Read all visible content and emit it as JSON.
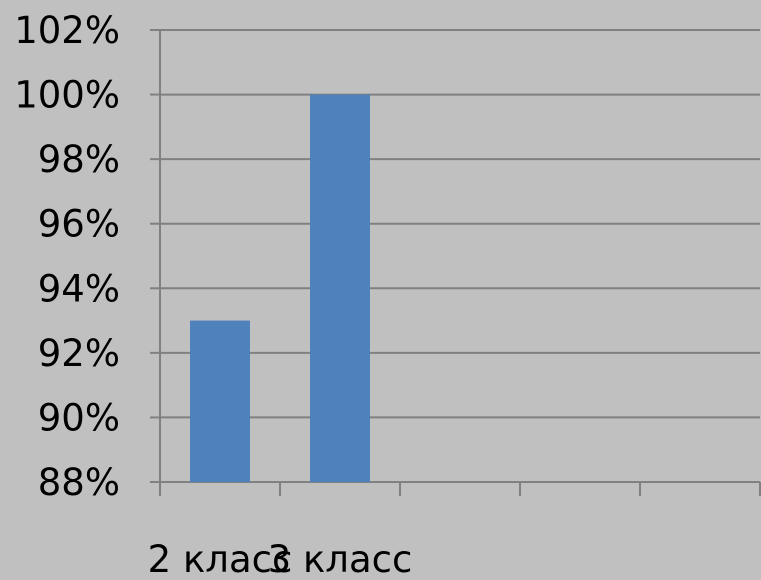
{
  "chart_data": {
    "type": "bar",
    "categories": [
      "2 класс",
      "3 класс",
      "",
      "",
      ""
    ],
    "values": [
      93,
      100,
      null,
      null,
      null
    ],
    "title": "",
    "xlabel": "",
    "ylabel": "",
    "ylim": [
      88,
      102
    ],
    "yticks": [
      "88%",
      "90%",
      "92%",
      "94%",
      "96%",
      "98%",
      "100%",
      "102%"
    ],
    "grid": true,
    "legend": "none",
    "colors": {
      "background": "#c0c0c0",
      "bar": "#4f81bd",
      "grid": "#808080",
      "axis": "#808080"
    }
  }
}
